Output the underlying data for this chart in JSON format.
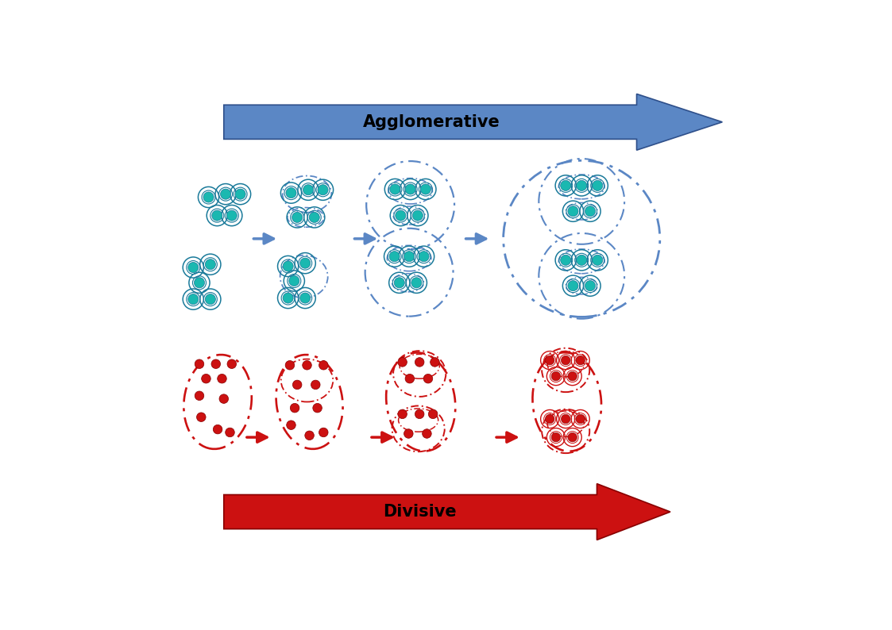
{
  "fig_width": 11.23,
  "fig_height": 7.94,
  "bg_color": "#ffffff",
  "blue_color": "#5b87c5",
  "blue_dark": "#2e4f8a",
  "teal_fill": "#1ab8b0",
  "teal_ring": "#1a7a9a",
  "red_color": "#cc1111",
  "red_dark": "#880000",
  "agglomerative_label": "Agglomerative",
  "divisive_label": "Divisive"
}
